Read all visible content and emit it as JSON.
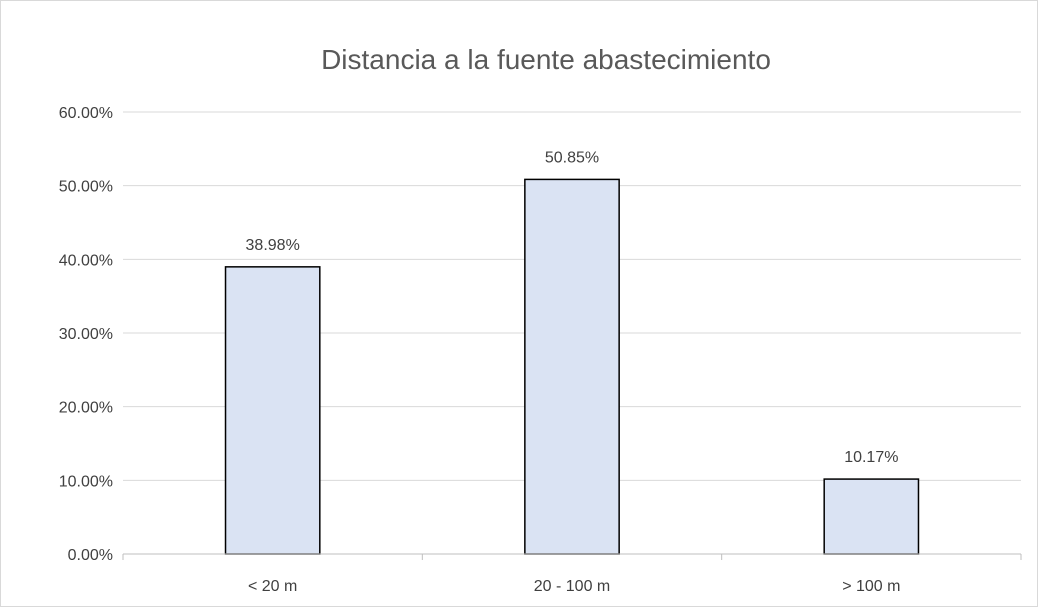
{
  "chart_data": {
    "type": "bar",
    "title": "Distancia a la fuente abastecimiento",
    "xlabel": "",
    "ylabel": "",
    "categories": [
      "< 20 m",
      "20 - 100 m",
      "> 100 m"
    ],
    "values": [
      38.98,
      50.85,
      10.17
    ],
    "data_labels": [
      "38.98%",
      "50.85%",
      "10.17%"
    ],
    "ylim": [
      0,
      60
    ],
    "yticks": [
      0,
      10,
      20,
      30,
      40,
      50,
      60
    ],
    "ytick_labels": [
      "0.00%",
      "10.00%",
      "20.00%",
      "30.00%",
      "40.00%",
      "50.00%",
      "60.00%"
    ],
    "grid": true,
    "legend": "none",
    "colors": {
      "bar_fill": "#dae3f3",
      "bar_stroke": "#000000",
      "gridline": "#d9d9d9",
      "title": "#595959",
      "text": "#404040"
    }
  }
}
